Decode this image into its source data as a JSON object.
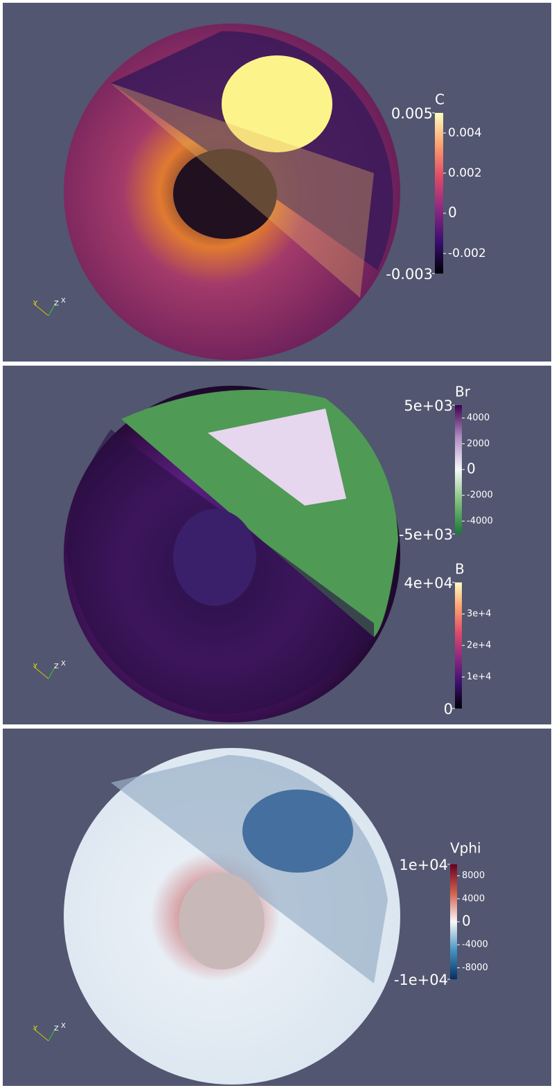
{
  "panels": [
    {
      "colorbars": [
        {
          "title": "C",
          "range": [
            -0.003,
            0.005
          ],
          "ticks": [
            0.004,
            0.002,
            0,
            -0.002
          ],
          "colors": [
            "#000004",
            "#3b0f70",
            "#8c2981",
            "#de4968",
            "#fe9f6d",
            "#fcfdbf"
          ]
        }
      ],
      "triad": [
        "Y",
        "Z",
        "X"
      ]
    },
    {
      "colorbars": [
        {
          "title": "Br",
          "range": [
            {
              "value": -5000,
              "label": "-5e+03"
            },
            {
              "value": 5000,
              "label": "5e+03"
            }
          ],
          "ticks": [
            4000,
            2000,
            0,
            -2000,
            -4000
          ],
          "colors": [
            "#1b7837",
            "#7fbf7b",
            "#f7f7f7",
            "#af8dc3",
            "#40004b"
          ]
        },
        {
          "title": "B",
          "range": [
            0,
            {
              "value": 40000,
              "label": "4e+04"
            }
          ],
          "ticks": [
            {
              "value": 30000,
              "label": "3e+4"
            },
            {
              "value": 20000,
              "label": "2e+4"
            },
            {
              "value": 10000,
              "label": "1e+4"
            }
          ],
          "colors": [
            "#000004",
            "#3b0f70",
            "#8c2981",
            "#de4968",
            "#fe9f6d",
            "#fcfdbf"
          ]
        }
      ],
      "triad": [
        "Y",
        "Z",
        "X"
      ]
    },
    {
      "colorbars": [
        {
          "title": "Vphi",
          "range": [
            {
              "value": -10000,
              "label": "-1e+04"
            },
            {
              "value": 10000,
              "label": "1e+04"
            }
          ],
          "ticks": [
            8000,
            4000,
            0,
            -4000,
            -8000
          ],
          "colors": [
            "#053061",
            "#4393c3",
            "#f7f7f7",
            "#d6604d",
            "#67001f"
          ]
        }
      ],
      "triad": [
        "Y",
        "Z",
        "X"
      ]
    }
  ]
}
